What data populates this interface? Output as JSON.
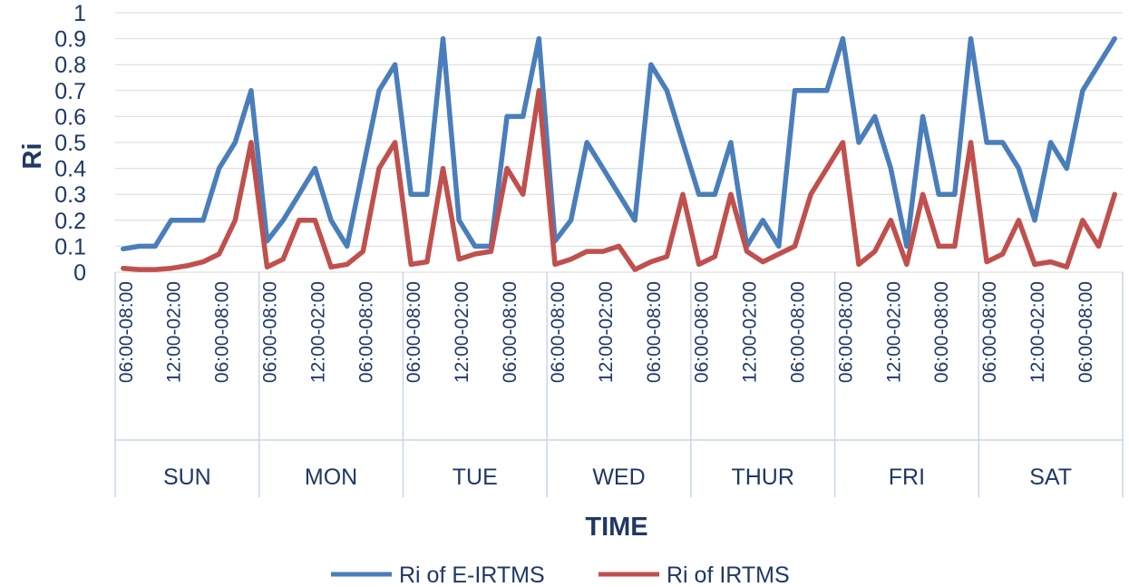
{
  "chart_data": {
    "type": "line",
    "ylabel": "Ri",
    "xlabel": "TIME",
    "ylim": [
      0,
      1
    ],
    "yticks": [
      "0",
      "0.1",
      "0.2",
      "0.3",
      "0.4",
      "0.5",
      "0.6",
      "0.7",
      "0.8",
      "0.9",
      "1"
    ],
    "grid": true,
    "legend_position": "bottom",
    "days": [
      "SUN",
      "MON",
      "TUE",
      "WED",
      "THUR",
      "FRI",
      "SAT"
    ],
    "time_tick_labels": [
      "06:00-08:00",
      "12:00-02:00",
      "06:00-08:00"
    ],
    "series": [
      {
        "name": "Ri of E-IRTMS",
        "color": "#4a7ebb",
        "values": [
          0.09,
          0.1,
          0.1,
          0.2,
          0.2,
          0.2,
          0.4,
          0.5,
          0.7,
          0.12,
          0.2,
          0.3,
          0.4,
          0.2,
          0.1,
          0.4,
          0.7,
          0.8,
          0.3,
          0.3,
          0.9,
          0.2,
          0.1,
          0.1,
          0.6,
          0.6,
          0.9,
          0.12,
          0.2,
          0.5,
          0.4,
          0.3,
          0.2,
          0.8,
          0.7,
          0.5,
          0.3,
          0.3,
          0.5,
          0.1,
          0.2,
          0.1,
          0.7,
          0.7,
          0.7,
          0.9,
          0.5,
          0.6,
          0.4,
          0.1,
          0.6,
          0.3,
          0.3,
          0.9,
          0.5,
          0.5,
          0.4,
          0.2,
          0.5,
          0.4,
          0.7,
          0.8,
          0.9
        ]
      },
      {
        "name": "Ri of IRTMS",
        "color": "#c0504d",
        "values": [
          0.015,
          0.01,
          0.01,
          0.015,
          0.025,
          0.04,
          0.07,
          0.2,
          0.5,
          0.02,
          0.05,
          0.2,
          0.2,
          0.02,
          0.03,
          0.08,
          0.4,
          0.5,
          0.03,
          0.04,
          0.4,
          0.05,
          0.07,
          0.08,
          0.4,
          0.3,
          0.7,
          0.03,
          0.05,
          0.08,
          0.08,
          0.1,
          0.01,
          0.04,
          0.06,
          0.3,
          0.03,
          0.06,
          0.3,
          0.08,
          0.04,
          0.07,
          0.1,
          0.3,
          0.4,
          0.5,
          0.03,
          0.08,
          0.2,
          0.03,
          0.3,
          0.1,
          0.1,
          0.5,
          0.04,
          0.07,
          0.2,
          0.03,
          0.04,
          0.02,
          0.2,
          0.1,
          0.3
        ]
      }
    ]
  }
}
